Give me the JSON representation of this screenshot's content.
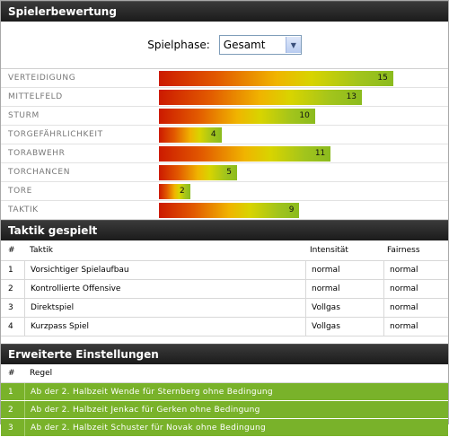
{
  "ratings_section": {
    "title": "Spielerbewertung",
    "phase_label": "Spielphase:",
    "phase_value": "Gesamt",
    "rows": [
      {
        "label": "VERTEIDIGUNG",
        "value": 15
      },
      {
        "label": "MITTELFELD",
        "value": 13
      },
      {
        "label": "STURM",
        "value": 10
      },
      {
        "label": "TORGEFÄHRLICHKEIT",
        "value": 4
      },
      {
        "label": "TORABWEHR",
        "value": 11
      },
      {
        "label": "TORCHANCEN",
        "value": 5
      },
      {
        "label": "TORE",
        "value": 2
      },
      {
        "label": "TAKTIK",
        "value": 9
      }
    ]
  },
  "tactics_section": {
    "title": "Taktik gespielt",
    "headers": {
      "num": "#",
      "tactic": "Taktik",
      "intensity": "Intensität",
      "fairness": "Fairness"
    },
    "rows": [
      {
        "num": "1",
        "tactic": "Vorsichtiger Spielaufbau",
        "intensity": "normal",
        "fairness": "normal"
      },
      {
        "num": "2",
        "tactic": "Kontrollierte Offensive",
        "intensity": "normal",
        "fairness": "normal"
      },
      {
        "num": "3",
        "tactic": "Direktspiel",
        "intensity": "Vollgas",
        "fairness": "normal"
      },
      {
        "num": "4",
        "tactic": "Kurzpass Spiel",
        "intensity": "Vollgas",
        "fairness": "normal"
      }
    ]
  },
  "settings_section": {
    "title": "Erweiterte Einstellungen",
    "headers": {
      "num": "#",
      "rule": "Regel"
    },
    "rows": [
      {
        "num": "1",
        "rule": "Ab der 2. Halbzeit Wende für Sternberg ohne Bedingung"
      },
      {
        "num": "2",
        "rule": "Ab der 2. Halbzeit Jenkac für Gerken ohne Bedingung"
      },
      {
        "num": "3",
        "rule": "Ab der 2. Halbzeit Schuster für Novak ohne Bedingung"
      }
    ]
  },
  "scale_max": 15,
  "colors": {
    "header_bg": "#1f1f1f",
    "rule_row_bg": "#79b22a"
  },
  "icons": {
    "select_arrow": "chevron-down-icon"
  }
}
